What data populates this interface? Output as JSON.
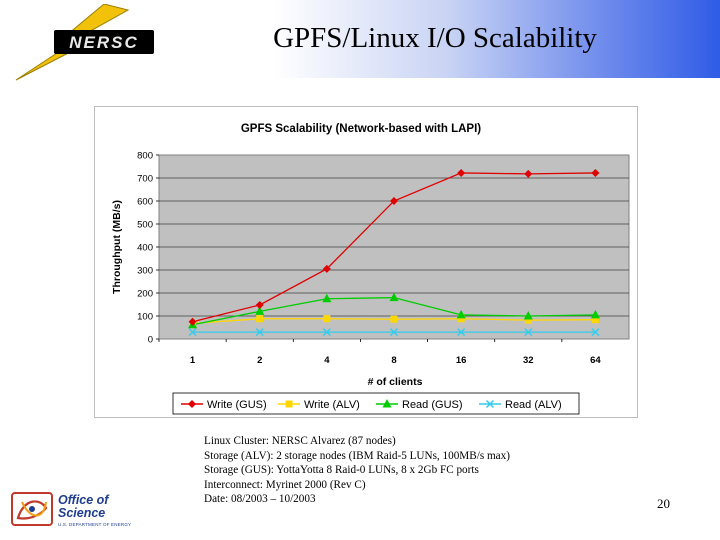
{
  "slide": {
    "title": "GPFS/Linux I/O Scalability",
    "page_number": "20",
    "logo_top": "NERSC",
    "logo_bottom_line1": "Office of",
    "logo_bottom_line2": "Science",
    "logo_bottom_sub": "U.S. DEPARTMENT OF ENERGY",
    "notes": [
      "Linux Cluster: NERSC Alvarez (87 nodes)",
      "Storage (ALV): 2 storage nodes (IBM Raid-5 LUNs, 100MB/s max)",
      "Storage (GUS): YottaYotta 8 Raid-0 LUNs, 8 x 2Gb FC ports",
      "Interconnect: Myrinet 2000 (Rev C)",
      "Date: 08/2003 – 10/2003"
    ]
  },
  "chart_data": {
    "type": "line",
    "title": "GPFS Scalability (Network-based with LAPI)",
    "xlabel": "# of clients",
    "ylabel": "Throughput (MB/s)",
    "categories": [
      "1",
      "2",
      "4",
      "8",
      "16",
      "32",
      "64"
    ],
    "ylim": [
      0,
      800
    ],
    "yticks": [
      0,
      100,
      200,
      300,
      400,
      500,
      600,
      700,
      800
    ],
    "grid": true,
    "legend_position": "bottom",
    "series": [
      {
        "name": "Write (GUS)",
        "color": "#e00000",
        "marker": "diamond",
        "values": [
          75,
          148,
          305,
          600,
          722,
          718,
          722
        ]
      },
      {
        "name": "Write (ALV)",
        "color": "#ffd700",
        "marker": "square",
        "values": [
          68,
          88,
          88,
          86,
          88,
          82,
          84
        ]
      },
      {
        "name": "Read (GUS)",
        "color": "#00cc00",
        "marker": "triangle",
        "values": [
          62,
          120,
          175,
          180,
          105,
          100,
          105
        ]
      },
      {
        "name": "Read (ALV)",
        "color": "#33ccee",
        "marker": "x",
        "values": [
          30,
          30,
          30,
          30,
          30,
          30,
          30
        ]
      }
    ]
  }
}
